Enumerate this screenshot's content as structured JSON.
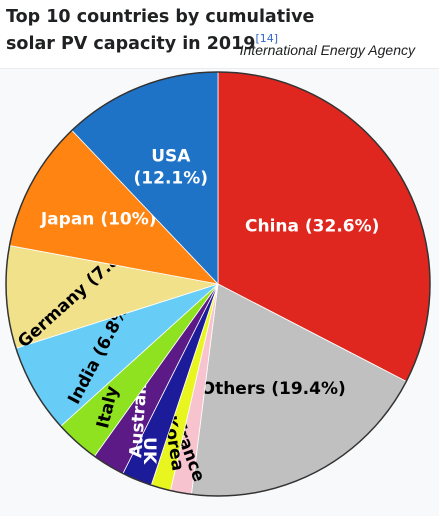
{
  "caption": {
    "title": "Top 10 countries by cumulative solar PV capacity in 2019",
    "ref": "[14]",
    "source": "International Energy Agency"
  },
  "chart_data": {
    "type": "pie",
    "title": "Top 10 countries by cumulative solar PV capacity in 2019",
    "slices": [
      {
        "name": "China",
        "label": "China (32.6%)",
        "value": 32.6,
        "color": "#e0271f"
      },
      {
        "name": "Others",
        "label": "Others (19.4%)",
        "value": 19.4,
        "color": "#c0c0c0"
      },
      {
        "name": "France",
        "label": "France",
        "value": 1.6,
        "color": "#f7c3cf"
      },
      {
        "name": "Korea",
        "label": "Korea",
        "value": 1.5,
        "color": "#e8f51e"
      },
      {
        "name": "UK",
        "label": "UK",
        "value": 2.3,
        "color": "#1c1c9b"
      },
      {
        "name": "Australia",
        "label": "Australia",
        "value": 2.5,
        "color": "#5b1a85"
      },
      {
        "name": "Italy",
        "label": "Italy",
        "value": 3.4,
        "color": "#8fe21f"
      },
      {
        "name": "India",
        "label": "India (6.8%)",
        "value": 6.8,
        "color": "#67cdf7"
      },
      {
        "name": "Germany",
        "label": "Germany (7.8%)",
        "value": 7.8,
        "color": "#f2e18b"
      },
      {
        "name": "Japan",
        "label": "Japan (10%)",
        "value": 10,
        "color": "#ff8411"
      },
      {
        "name": "USA",
        "label": "USA (12.1%)",
        "value": 12.1,
        "color": "#1e73c7"
      }
    ]
  }
}
